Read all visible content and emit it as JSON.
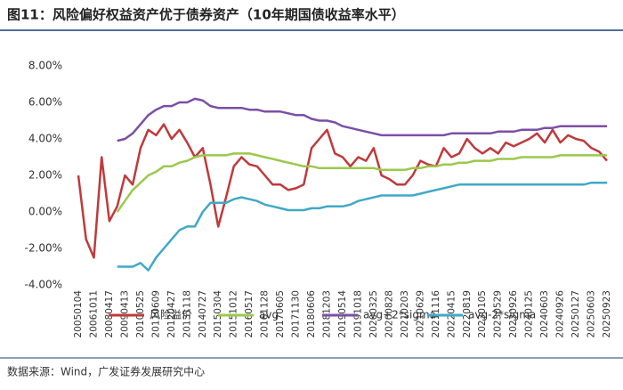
{
  "chart_data": {
    "type": "line",
    "title": "图11：风险偏好权益资产优于债券资产（10年期国债收益率水平）",
    "source": "数据来源：Wind，广发证券发展研究中心",
    "categories": [
      "20050104",
      null,
      "20061011",
      null,
      "20080417",
      null,
      "20090413",
      null,
      "20100525",
      null,
      "20110609",
      null,
      "20120427",
      null,
      "20131118",
      null,
      "20140727",
      null,
      "20150304",
      null,
      "20151012",
      null,
      "20160517",
      null,
      "20161128",
      null,
      "20170605",
      null,
      "20171130",
      null,
      "20180606",
      null,
      "20181203",
      null,
      "20190514",
      null,
      "20191018",
      null,
      "20200325",
      null,
      "20200828",
      null,
      "20210203",
      null,
      "20210629",
      null,
      "20211116",
      null,
      "20220415",
      null,
      "20220819",
      null,
      "20230105",
      null,
      "20230529",
      null,
      "20230926",
      null,
      "20240125",
      null,
      "20240603",
      null,
      "20240926",
      null,
      "20250127",
      null,
      "20250603",
      null,
      "20250923"
    ],
    "ylim": [
      -4,
      8
    ],
    "yticks": [
      {
        "value": -4,
        "label": "-4.00%"
      },
      {
        "value": -2,
        "label": "-2.00%"
      },
      {
        "value": 0,
        "label": "0.00%"
      },
      {
        "value": 2,
        "label": "2.00%"
      },
      {
        "value": 4,
        "label": "4.00%"
      },
      {
        "value": 6,
        "label": "6.00%"
      },
      {
        "value": 8,
        "label": "8.00%"
      }
    ],
    "series": [
      {
        "name": "风险溢价",
        "color": "#c0393b",
        "values": [
          2.0,
          -1.5,
          -2.5,
          3.0,
          -0.5,
          0.3,
          2.0,
          1.5,
          3.5,
          4.5,
          4.2,
          4.8,
          4.0,
          4.5,
          3.8,
          3.0,
          3.5,
          1.5,
          -0.8,
          0.8,
          2.5,
          3.0,
          2.6,
          2.5,
          2.0,
          1.5,
          1.5,
          1.2,
          1.3,
          1.5,
          3.5,
          4.0,
          4.5,
          3.2,
          3.0,
          2.5,
          3.0,
          2.8,
          3.5,
          2.0,
          1.8,
          1.5,
          1.5,
          2.0,
          2.8,
          2.6,
          2.5,
          3.5,
          3.0,
          3.2,
          4.0,
          3.5,
          3.2,
          3.5,
          3.2,
          3.8,
          3.6,
          3.8,
          4.0,
          4.3,
          3.8,
          4.5,
          3.8,
          4.2,
          4.0,
          3.9,
          3.5,
          3.3,
          2.8
        ]
      },
      {
        "name": "avg",
        "color": "#9cc84b",
        "values": [
          null,
          null,
          null,
          null,
          null,
          0.0,
          0.6,
          1.2,
          1.6,
          2.0,
          2.2,
          2.5,
          2.5,
          2.7,
          2.8,
          3.0,
          3.1,
          3.1,
          3.1,
          3.1,
          3.2,
          3.2,
          3.2,
          3.1,
          3.0,
          2.9,
          2.8,
          2.7,
          2.6,
          2.5,
          2.5,
          2.4,
          2.4,
          2.4,
          2.4,
          2.4,
          2.4,
          2.4,
          2.4,
          2.3,
          2.3,
          2.3,
          2.3,
          2.4,
          2.4,
          2.5,
          2.5,
          2.6,
          2.6,
          2.7,
          2.7,
          2.8,
          2.8,
          2.8,
          2.9,
          2.9,
          2.9,
          3.0,
          3.0,
          3.0,
          3.0,
          3.0,
          3.1,
          3.1,
          3.1,
          3.1,
          3.1,
          3.1,
          3.1
        ]
      },
      {
        "name": "avg+2*sigma",
        "color": "#7b4fa6",
        "values": [
          null,
          null,
          null,
          null,
          null,
          3.9,
          4.0,
          4.3,
          4.8,
          5.3,
          5.6,
          5.8,
          5.8,
          6.0,
          6.0,
          6.2,
          6.1,
          5.8,
          5.7,
          5.7,
          5.7,
          5.7,
          5.6,
          5.6,
          5.5,
          5.5,
          5.5,
          5.4,
          5.3,
          5.3,
          5.1,
          5.0,
          5.0,
          4.9,
          4.7,
          4.6,
          4.5,
          4.4,
          4.3,
          4.2,
          4.2,
          4.2,
          4.2,
          4.2,
          4.2,
          4.2,
          4.2,
          4.2,
          4.3,
          4.3,
          4.3,
          4.3,
          4.3,
          4.3,
          4.4,
          4.4,
          4.4,
          4.5,
          4.5,
          4.5,
          4.6,
          4.6,
          4.7,
          4.7,
          4.7,
          4.7,
          4.7,
          4.7,
          4.7
        ]
      },
      {
        "name": "avg-2*sigma",
        "color": "#40a9c6",
        "values": [
          null,
          null,
          null,
          null,
          null,
          -3.0,
          -3.0,
          -3.0,
          -2.8,
          -3.2,
          -2.5,
          -2.0,
          -1.5,
          -1.0,
          -0.8,
          -0.8,
          0.0,
          0.5,
          0.5,
          0.5,
          0.7,
          0.8,
          0.7,
          0.6,
          0.4,
          0.3,
          0.2,
          0.1,
          0.1,
          0.1,
          0.2,
          0.2,
          0.3,
          0.3,
          0.3,
          0.4,
          0.6,
          0.7,
          0.8,
          0.9,
          0.9,
          0.9,
          0.9,
          0.9,
          1.0,
          1.1,
          1.2,
          1.3,
          1.4,
          1.5,
          1.5,
          1.5,
          1.5,
          1.5,
          1.5,
          1.5,
          1.5,
          1.5,
          1.5,
          1.5,
          1.5,
          1.5,
          1.5,
          1.5,
          1.5,
          1.5,
          1.6,
          1.6,
          1.6
        ]
      }
    ]
  }
}
